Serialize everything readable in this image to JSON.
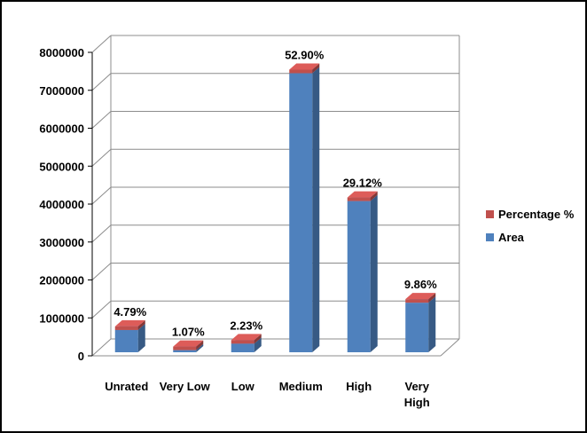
{
  "chart_data": {
    "type": "bar",
    "categories": [
      [
        "Unrated"
      ],
      [
        "Very Low"
      ],
      [
        "Low"
      ],
      [
        "Medium"
      ],
      [
        "High"
      ],
      [
        "Very",
        "High"
      ]
    ],
    "series": [
      {
        "name": "Percentage %",
        "values": [
          4.79,
          1.07,
          2.23,
          52.9,
          29.12,
          9.86
        ],
        "color": "#c0504d"
      },
      {
        "name": "Area",
        "values": [
          680000,
          150000,
          320000,
          7450000,
          4080000,
          1400000
        ],
        "color": "#4f81bd"
      }
    ],
    "data_labels": [
      "4.79%",
      "1.07%",
      "2.23%",
      "52.90%",
      "29.12%",
      "9.86%"
    ],
    "yticks": [
      "0",
      "1000000",
      "2000000",
      "3000000",
      "4000000",
      "5000000",
      "6000000",
      "7000000",
      "8000000"
    ],
    "ylim": [
      0,
      8000000
    ],
    "grid": true,
    "legend_position": "right",
    "style": "3d-column"
  }
}
